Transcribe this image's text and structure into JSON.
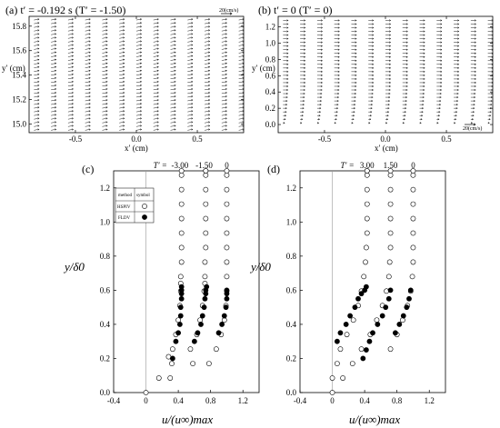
{
  "chart_data": [
    {
      "panel": "a",
      "type": "quiver",
      "title": "(a) t′ = -0.192 s (T′ = -1.50)",
      "title_parts": {
        "prefix": "(a) t′ = -0.192 s (T′ = -1.50)"
      },
      "xlabel": "x′ (cm)",
      "ylabel": "y′ (cm)",
      "xlim": [
        -0.88,
        0.88
      ],
      "ylim": [
        14.93,
        15.88
      ],
      "xticks": [
        "-0.5",
        "0.0",
        "0.5"
      ],
      "xtick_values": [
        -0.5,
        0.0,
        0.5
      ],
      "yticks": [
        "15.0",
        "15.2",
        "15.4",
        "15.6",
        "15.8"
      ],
      "ytick_values": [
        15.0,
        15.2,
        15.4,
        15.6,
        15.8
      ],
      "reference_vector": "20(cm/s)",
      "reference_vector_speed": 20,
      "columns_x": [
        -0.84,
        -0.7,
        -0.56,
        -0.42,
        -0.28,
        -0.14,
        0.0,
        0.14,
        0.28,
        0.42,
        0.56,
        0.7,
        0.84
      ],
      "rows_y_range": [
        14.95,
        15.86
      ],
      "row_spacing": 0.03,
      "vector": {
        "u": 9.5,
        "v": 1.6
      }
    },
    {
      "panel": "b",
      "type": "quiver",
      "title": "(b) t′ = 0 (T′ = 0)",
      "xlabel": "x′ (cm)",
      "ylabel": "y′ (cm)",
      "xlim": [
        -0.88,
        0.88
      ],
      "ylim": [
        -0.1,
        1.33
      ],
      "xticks": [
        "-0.5",
        "0.0",
        "0.5"
      ],
      "xtick_values": [
        -0.5,
        0.0,
        0.5
      ],
      "yticks": [
        "0.0",
        "0.2",
        "0.4",
        "0.6",
        "0.8",
        "1.0",
        "1.2"
      ],
      "ytick_values": [
        0.0,
        0.2,
        0.4,
        0.6,
        0.8,
        1.0,
        1.2
      ],
      "reference_vector": "20(cm/s)",
      "reference_vector_speed": 20,
      "columns_x": [
        -0.84,
        -0.7,
        -0.56,
        -0.42,
        -0.28,
        -0.14,
        0.0,
        0.14,
        0.28,
        0.42,
        0.56,
        0.7,
        0.84
      ],
      "rows_y_range": [
        0.02,
        1.3
      ],
      "row_spacing": 0.045,
      "profile": {
        "u_free": 9.5,
        "delta_cm": 0.5
      }
    },
    {
      "panel": "c",
      "type": "scatter",
      "title": "(c)",
      "xlabel": "u/(u∞)max",
      "ylabel": "y/δ0",
      "xlim": [
        -0.4,
        1.4
      ],
      "ylim": [
        0,
        1.3
      ],
      "xticks": [
        "-0.4",
        "0",
        "0.4",
        "0.8",
        "1.2"
      ],
      "xtick_values": [
        -0.4,
        0,
        0.4,
        0.8,
        1.2
      ],
      "yticks": [
        "0.0",
        "0.2",
        "0.4",
        "0.6",
        "0.8",
        "1.0",
        "1.2"
      ],
      "ytick_values": [
        0,
        0.2,
        0.4,
        0.6,
        0.8,
        1.0,
        1.2
      ],
      "zero_line_x": 0,
      "profile_label_prefix": "T′ =",
      "profile_labels": [
        {
          "text": "-3.00",
          "x": 0.42
        },
        {
          "text": "-1.50",
          "x": 0.72
        },
        {
          "text": "0",
          "x": 1.0
        }
      ],
      "legend": {
        "headers": [
          "method",
          "symbol"
        ],
        "entries": [
          {
            "method": "HSPIV",
            "marker": "open-circle"
          },
          {
            "method": "FLDV",
            "marker": "filled-circle"
          }
        ]
      },
      "series": [
        {
          "name": "HSPIV",
          "offset": 0.0,
          "marker": "open-circle",
          "x": [
            0.0,
            0.16,
            0.32,
            0.28,
            0.33,
            0.37,
            0.4,
            0.42,
            0.43,
            0.43,
            0.43,
            0.44,
            0.44,
            0.44,
            0.44,
            0.44,
            0.44,
            0.44,
            0.44
          ],
          "y": [
            0.0,
            0.085,
            0.17,
            0.21,
            0.255,
            0.34,
            0.425,
            0.51,
            0.595,
            0.64,
            0.68,
            0.765,
            0.85,
            0.935,
            1.02,
            1.105,
            1.19,
            1.275,
            1.3
          ]
        },
        {
          "name": "HSPIV",
          "offset": 0.3,
          "marker": "open-circle",
          "x": [
            0.3,
            0.58,
            0.55,
            0.63,
            0.67,
            0.7,
            0.72,
            0.73,
            0.73,
            0.73,
            0.74,
            0.74,
            0.74,
            0.74,
            0.74,
            0.74,
            0.74,
            0.74
          ],
          "y": [
            0.085,
            0.17,
            0.255,
            0.34,
            0.425,
            0.51,
            0.595,
            0.64,
            0.68,
            0.765,
            0.85,
            0.935,
            1.02,
            1.105,
            1.19,
            1.275,
            1.3,
            1.3
          ]
        },
        {
          "name": "HSPIV",
          "offset": 0.6,
          "marker": "open-circle",
          "x": [
            0.78,
            0.87,
            0.93,
            0.97,
            0.99,
            1.0,
            1.0,
            1.0,
            1.0,
            1.0,
            1.0,
            1.0,
            1.0,
            1.0,
            1.0
          ],
          "y": [
            0.17,
            0.255,
            0.34,
            0.425,
            0.51,
            0.595,
            0.68,
            0.765,
            0.85,
            0.935,
            1.02,
            1.105,
            1.19,
            1.275,
            1.3
          ]
        },
        {
          "name": "FLDV",
          "offset": 0.0,
          "marker": "filled-circle",
          "x": [
            0.33,
            0.37,
            0.4,
            0.42,
            0.43,
            0.43,
            0.44,
            0.44,
            0.44,
            0.44
          ],
          "y": [
            0.2,
            0.3,
            0.35,
            0.4,
            0.45,
            0.5,
            0.55,
            0.58,
            0.6,
            0.62
          ]
        },
        {
          "name": "FLDV",
          "offset": 0.3,
          "marker": "filled-circle",
          "x": [
            0.6,
            0.64,
            0.68,
            0.7,
            0.72,
            0.73,
            0.74,
            0.74,
            0.75
          ],
          "y": [
            0.3,
            0.35,
            0.4,
            0.45,
            0.5,
            0.55,
            0.58,
            0.6,
            0.62
          ]
        },
        {
          "name": "FLDV",
          "offset": 0.6,
          "marker": "filled-circle",
          "x": [
            0.9,
            0.94,
            0.97,
            0.99,
            1.0,
            1.0,
            1.0
          ],
          "y": [
            0.35,
            0.4,
            0.45,
            0.5,
            0.55,
            0.58,
            0.6
          ]
        }
      ]
    },
    {
      "panel": "d",
      "type": "scatter",
      "title": "(d)",
      "xlabel": "u/(u∞)max",
      "ylabel": "y/δ0",
      "xlim": [
        -0.4,
        1.4
      ],
      "ylim": [
        0,
        1.3
      ],
      "xticks": [
        "-0.4",
        "0",
        "0.4",
        "0.8",
        "1.2"
      ],
      "xtick_values": [
        -0.4,
        0,
        0.4,
        0.8,
        1.2
      ],
      "yticks": [
        "0.0",
        "0.2",
        "0.4",
        "0.6",
        "0.8",
        "1.0",
        "1.2"
      ],
      "ytick_values": [
        0,
        0.2,
        0.4,
        0.6,
        0.8,
        1.0,
        1.2
      ],
      "zero_line_x": 0,
      "profile_label_prefix": "T′ =",
      "profile_labels": [
        {
          "text": "3.00",
          "x": 0.43
        },
        {
          "text": "1.50",
          "x": 0.72
        },
        {
          "text": "0",
          "x": 1.0
        }
      ],
      "series": [
        {
          "name": "HSPIV",
          "offset": 0.0,
          "marker": "open-circle",
          "x": [
            0.0,
            0.0,
            0.06,
            0.1,
            0.18,
            0.26,
            0.32,
            0.36,
            0.39,
            0.41,
            0.42,
            0.43,
            0.43,
            0.43,
            0.43,
            0.43,
            0.43,
            0.43
          ],
          "y": [
            0.0,
            0.085,
            0.17,
            0.255,
            0.34,
            0.425,
            0.51,
            0.595,
            0.68,
            0.765,
            0.85,
            0.935,
            1.02,
            1.105,
            1.19,
            1.275,
            1.3,
            1.3
          ]
        },
        {
          "name": "HSPIV",
          "offset": 0.3,
          "marker": "open-circle",
          "x": [
            0.13,
            0.25,
            0.36,
            0.47,
            0.55,
            0.62,
            0.67,
            0.7,
            0.71,
            0.72,
            0.72,
            0.72,
            0.72,
            0.72,
            0.72,
            0.72
          ],
          "y": [
            0.085,
            0.17,
            0.255,
            0.34,
            0.425,
            0.51,
            0.595,
            0.68,
            0.765,
            0.85,
            0.935,
            1.02,
            1.105,
            1.19,
            1.275,
            1.3
          ]
        },
        {
          "name": "HSPIV",
          "offset": 0.6,
          "marker": "open-circle",
          "x": [
            0.72,
            0.8,
            0.87,
            0.93,
            0.97,
            0.99,
            1.0,
            1.0,
            1.0,
            1.0,
            1.0,
            1.0,
            1.0,
            1.0
          ],
          "y": [
            0.255,
            0.34,
            0.425,
            0.51,
            0.595,
            0.68,
            0.765,
            0.85,
            0.935,
            1.02,
            1.105,
            1.19,
            1.275,
            1.3
          ]
        },
        {
          "name": "FLDV",
          "offset": 0.0,
          "marker": "filled-circle",
          "x": [
            0.06,
            0.1,
            0.17,
            0.22,
            0.28,
            0.32,
            0.36,
            0.4,
            0.42
          ],
          "y": [
            0.3,
            0.35,
            0.4,
            0.45,
            0.5,
            0.55,
            0.58,
            0.6,
            0.62
          ]
        },
        {
          "name": "FLDV",
          "offset": 0.3,
          "marker": "filled-circle",
          "x": [
            0.38,
            0.42,
            0.46,
            0.5,
            0.56,
            0.62,
            0.66,
            0.7,
            0.72
          ],
          "y": [
            0.2,
            0.25,
            0.3,
            0.35,
            0.4,
            0.45,
            0.5,
            0.55,
            0.6
          ]
        },
        {
          "name": "FLDV",
          "offset": 0.6,
          "marker": "filled-circle",
          "x": [
            0.78,
            0.83,
            0.88,
            0.92,
            0.95,
            0.97
          ],
          "y": [
            0.35,
            0.4,
            0.45,
            0.5,
            0.55,
            0.6
          ]
        }
      ]
    }
  ]
}
